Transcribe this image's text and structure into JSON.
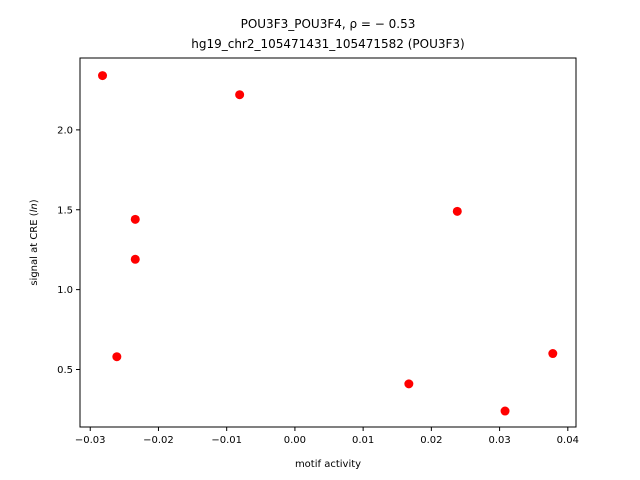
{
  "chart_data": {
    "type": "scatter",
    "title_line1": "POU3F3_POU3F4, ρ = − 0.53",
    "title_line2": "hg19_chr2_105471431_105471582 (POU3F3)",
    "xlabel": "motif activity",
    "ylabel": "signal at CRE (ln)",
    "xlim": [
      -0.0315,
      0.0412
    ],
    "ylim": [
      0.14,
      2.45
    ],
    "xticks": [
      -0.03,
      -0.02,
      -0.01,
      0.0,
      0.01,
      0.02,
      0.03,
      0.04
    ],
    "xtick_labels": [
      "−0.03",
      "−0.02",
      "−0.01",
      "0.00",
      "0.01",
      "0.02",
      "0.03",
      "0.04"
    ],
    "yticks": [
      0.5,
      1.0,
      1.5,
      2.0
    ],
    "ytick_labels": [
      "0.5",
      "1.0",
      "1.5",
      "2.0"
    ],
    "grid": false,
    "marker_color": "#ff0000",
    "points": [
      {
        "x": -0.0282,
        "y": 2.34
      },
      {
        "x": -0.0081,
        "y": 2.22
      },
      {
        "x": -0.0234,
        "y": 1.44
      },
      {
        "x": -0.0234,
        "y": 1.19
      },
      {
        "x": -0.0261,
        "y": 0.58
      },
      {
        "x": 0.0238,
        "y": 1.49
      },
      {
        "x": 0.0167,
        "y": 0.41
      },
      {
        "x": 0.0308,
        "y": 0.24
      },
      {
        "x": 0.0378,
        "y": 0.6
      }
    ]
  }
}
